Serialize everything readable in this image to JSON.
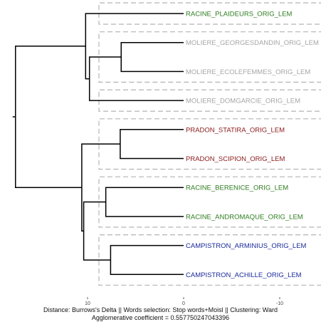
{
  "chart_data": {
    "type": "dendrogram",
    "orientation": "horizontal",
    "x_axis": {
      "ticks": [
        10,
        0,
        -10
      ],
      "tick_labels": [
        "10",
        "0",
        "-10"
      ],
      "reversed": true
    },
    "leaves": [
      {
        "label": "RACINE_PLAIDEURS_ORIG_LEM",
        "color": "#2e7d1f"
      },
      {
        "label": "MOLIERE_GEORGESDANDIN_ORIG_LEM",
        "color": "#a6a6a6"
      },
      {
        "label": "MOLIERE_ECOLEFEMMES_ORIG_LEM",
        "color": "#a6a6a6"
      },
      {
        "label": "MOLIERE_DOMGARCIE_ORIG_LEM",
        "color": "#a6a6a6"
      },
      {
        "label": "PRADON_STATIRA_ORIG_LEM",
        "color": "#8b1a1a"
      },
      {
        "label": "PRADON_SCIPION_ORIG_LEM",
        "color": "#8b1a1a"
      },
      {
        "label": "RACINE_BERENICE_ORIG_LEM",
        "color": "#2e7d1f"
      },
      {
        "label": "RACINE_ANDROMAQUE_ORIG_LEM",
        "color": "#2e7d1f"
      },
      {
        "label": "CAMPISTRON_ARMINIUS_ORIG_LEM",
        "color": "#1a2a9a"
      },
      {
        "label": "CAMPISTRON_ACHILLE_ORIG_LEM",
        "color": "#1a2a9a"
      }
    ],
    "merges": [
      {
        "children": [
          "L1",
          "L2"
        ],
        "height": 6.5
      },
      {
        "children": [
          "L4",
          "L5"
        ],
        "height": 6.6
      },
      {
        "children": [
          "L6",
          "L7"
        ],
        "height": 8.1
      },
      {
        "children": [
          "L8",
          "L9"
        ],
        "height": 7.6
      },
      {
        "children": [
          "M2",
          "M3"
        ],
        "height": 10.4
      },
      {
        "children": [
          "M0",
          "L3"
        ],
        "height": 9.8
      },
      {
        "children": [
          "L0",
          "M5"
        ],
        "height": 10.2
      },
      {
        "children": [
          "M1",
          "M4"
        ],
        "height": 10.6
      },
      {
        "children": [
          "M6",
          "M7"
        ],
        "height": 17.5
      }
    ],
    "rect_groups": [
      [
        0
      ],
      [
        1,
        2
      ],
      [
        3
      ],
      [
        4,
        5
      ],
      [
        6,
        7
      ],
      [
        8,
        9
      ]
    ],
    "rect_color": "#b3b3b3"
  },
  "footer": {
    "line1": "Distance:  Burrows's Delta  ||  Words selection:  Stop words+Moisl  || Clustering: Ward",
    "line2": "Agglomerative coefficient = 0.557750247043396"
  }
}
